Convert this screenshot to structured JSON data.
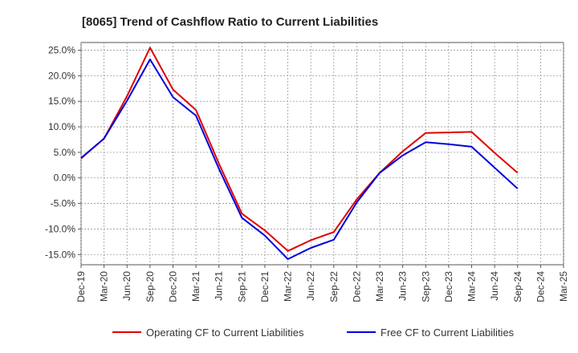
{
  "chart_data": {
    "type": "line",
    "title": "[8065]  Trend of Cashflow Ratio to Current Liabilities",
    "xlabel": "",
    "ylabel": "",
    "ylim": [
      -17.0,
      26.5
    ],
    "yticks": [
      25,
      20,
      15,
      10,
      5,
      0,
      -5,
      -10,
      -15
    ],
    "ytick_labels": [
      "25.0%",
      "20.0%",
      "15.0%",
      "10.0%",
      "5.0%",
      "0.0%",
      "-5.0%",
      "-10.0%",
      "-15.0%"
    ],
    "categories": [
      "Dec-19",
      "Mar-20",
      "Jun-20",
      "Sep-20",
      "Dec-20",
      "Mar-21",
      "Jun-21",
      "Sep-21",
      "Dec-21",
      "Mar-22",
      "Jun-22",
      "Sep-22",
      "Dec-22",
      "Mar-23",
      "Jun-23",
      "Sep-23",
      "Dec-23",
      "Mar-24",
      "Jun-24",
      "Sep-24",
      "Dec-24",
      "Mar-25"
    ],
    "grid": true,
    "legend_position": "bottom",
    "series": [
      {
        "name": "Operating CF to Current Liabilities",
        "color": "#e00000",
        "values": [
          3.8,
          7.7,
          16.0,
          25.5,
          17.3,
          13.3,
          2.8,
          -7.0,
          -10.3,
          -14.3,
          -12.2,
          -10.6,
          -4.2,
          1.0,
          5.2,
          8.8,
          8.9,
          9.0,
          4.9,
          1.0,
          null,
          null
        ]
      },
      {
        "name": "Free CF to Current Liabilities",
        "color": "#0000dd",
        "values": [
          3.9,
          7.7,
          15.1,
          23.2,
          15.8,
          12.2,
          1.8,
          -7.8,
          -11.3,
          -15.9,
          -13.7,
          -12.1,
          -4.8,
          1.0,
          4.4,
          7.0,
          6.6,
          6.1,
          2.0,
          -2.1,
          null,
          null
        ]
      }
    ]
  }
}
